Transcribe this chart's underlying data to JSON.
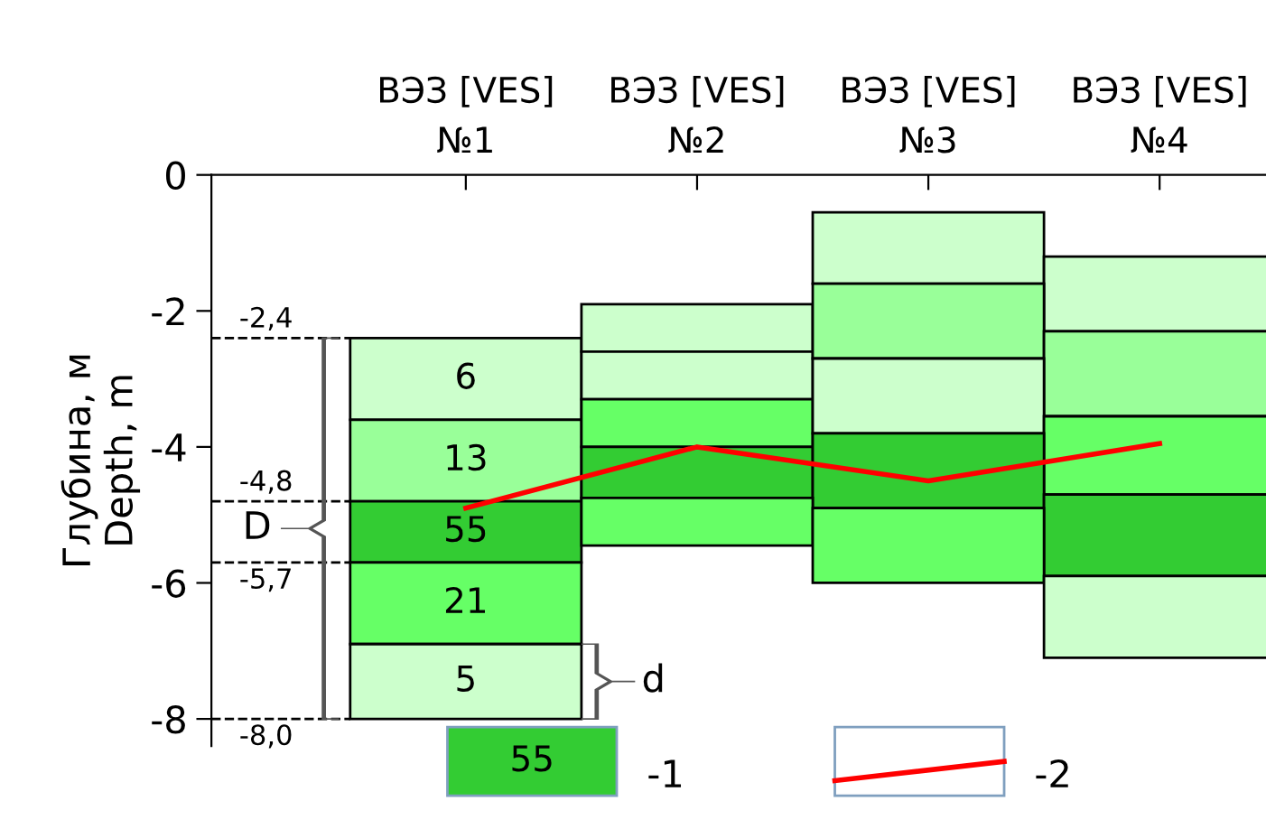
{
  "chart_data": {
    "type": "bar",
    "ylabel": "Глубина, м\nDepth, m",
    "categories": [
      "ВЭЗ [VES]\n№1",
      "ВЭЗ [VES]\n№2",
      "ВЭЗ [VES]\n№3",
      "ВЭЗ [VES]\n№4"
    ],
    "ylim": [
      -8.4,
      0
    ],
    "yticks": [
      0,
      -2,
      -4,
      -6,
      -8
    ],
    "grid": false,
    "legend": "bottom",
    "series": [
      {
        "base": [
          -3.6,
          -2.6,
          -1.6,
          -2.3
        ],
        "values": [
          1.2,
          0.7,
          1.05,
          1.1
        ],
        "colors": [
          "#ccffcc",
          "#ccffcc",
          "#ccffcc",
          "#ccffcc"
        ]
      },
      {
        "base": [
          -4.8,
          -3.3,
          -2.7,
          -3.55
        ],
        "values": [
          1.2,
          0.7,
          1.1,
          1.25
        ],
        "colors": [
          "#99ff99",
          "#ccffcc",
          "#99ff99",
          "#99ff99"
        ]
      },
      {
        "name": "-1",
        "base": [
          -5.7,
          -4.0,
          -3.8,
          -4.7
        ],
        "values": [
          0.9,
          0.7,
          1.1,
          1.15
        ],
        "colors": [
          "#33cc33",
          "#66ff66",
          "#ccffcc",
          "#66ff66"
        ]
      },
      {
        "base": [
          -6.9,
          -4.75,
          -4.9,
          -5.9
        ],
        "values": [
          1.2,
          0.75,
          1.1,
          1.2
        ],
        "colors": [
          "#66ff66",
          "#33cc33",
          "#33cc33",
          "#33cc33"
        ]
      },
      {
        "base": [
          -8.0,
          -5.45,
          -6.0,
          -7.1
        ],
        "values": [
          1.1,
          0.7,
          1.1,
          1.2
        ],
        "colors": [
          "#ccffcc",
          "#66ff66",
          "#66ff66",
          "#ccffcc"
        ]
      },
      {
        "type": "line",
        "name": "-2",
        "color": "#ff0000",
        "values": [
          -4.9,
          -4.0,
          -4.5,
          -3.95
        ]
      }
    ],
    "ref_lines": [
      {
        "axis": "y",
        "value": -2.4,
        "label": "-2,4",
        "line_style": "dashed",
        "color": "#000000"
      },
      {
        "axis": "y",
        "value": -4.8,
        "label": "-4,8",
        "line_style": "dashed",
        "color": "#000000"
      },
      {
        "axis": "y",
        "value": -5.7,
        "label": "-5,7",
        "line_style": "dashed",
        "color": "#000000"
      },
      {
        "axis": "y",
        "value": -8.0,
        "label": "-8,0",
        "line_style": "dashed",
        "color": "#000000"
      }
    ],
    "annotations": [
      "D",
      "d",
      "6",
      "13",
      "55",
      "21",
      "5",
      "55"
    ]
  }
}
